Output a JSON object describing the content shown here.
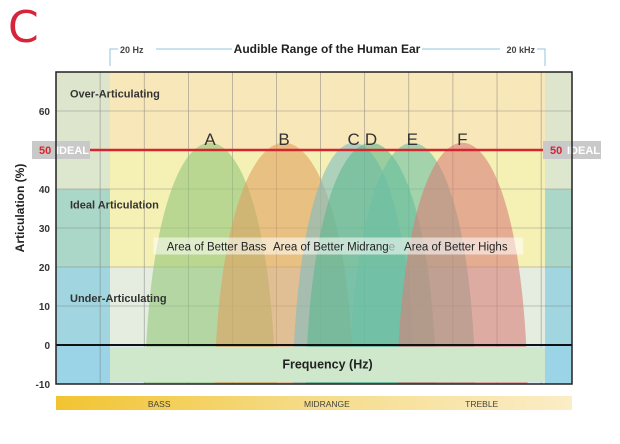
{
  "panel_label": "C",
  "colors": {
    "ideal_line": "#d3272f",
    "ideal_badge": "#c9c9c9",
    "zone_over": "#f8e7b9",
    "zone_ideal": "#f5f0b4",
    "zone_under": "#e4ede0",
    "ear_range": "#d9e9ef",
    "blue_edge": "#4fb8de",
    "freq_bar": "#cfe8cc"
  },
  "chart_data": {
    "type": "area",
    "title": "Audible Range of the Human Ear",
    "range_start_label": "20 Hz",
    "range_end_label": "20 kHz",
    "xlabel": "Frequency (Hz)",
    "ylabel": "Articulation (%)",
    "ylim": [
      -10,
      70
    ],
    "yticks": [
      -10,
      0,
      10,
      20,
      30,
      40,
      50,
      60
    ],
    "grid": true,
    "ideal": {
      "value": 50,
      "label": "IDEAL"
    },
    "zones": [
      {
        "name": "Over-Articulating",
        "from": 50,
        "to": 70
      },
      {
        "name": "Ideal Articulation",
        "from": 20,
        "to": 50
      },
      {
        "name": "Under-Articulating",
        "from": 0,
        "to": 20
      }
    ],
    "curve_x_range": [
      0,
      100
    ],
    "series": [
      {
        "name": "A",
        "x_range": [
          8,
          38
        ],
        "peak": 52,
        "color": "#93c77a"
      },
      {
        "name": "B",
        "x_range": [
          24,
          56
        ],
        "peak": 52,
        "color": "#e0a060"
      },
      {
        "name": "C",
        "x_range": [
          42,
          70
        ],
        "peak": 52,
        "color": "#7fbcc2"
      },
      {
        "name": "D",
        "x_range": [
          45,
          75
        ],
        "peak": 52,
        "color": "#5eb890"
      },
      {
        "name": "E",
        "x_range": [
          55,
          84
        ],
        "peak": 52,
        "color": "#6cbfa4"
      },
      {
        "name": "F",
        "x_range": [
          66,
          96
        ],
        "peak": 52,
        "color": "#d97f78"
      }
    ],
    "areas": [
      {
        "label": "Area of Better Bass",
        "x_from": 10,
        "x_to": 39,
        "y": 25
      },
      {
        "label": "Area of Better Midrange",
        "x_from": 39,
        "x_to": 64,
        "y": 25
      },
      {
        "label": "Area of Better Highs",
        "x_from": 64,
        "x_to": 95,
        "y": 25
      }
    ],
    "bands": [
      {
        "label": "BASS",
        "x_from": 0,
        "x_to": 40
      },
      {
        "label": "MIDRANGE",
        "x_from": 40,
        "x_to": 65
      },
      {
        "label": "TREBLE",
        "x_from": 65,
        "x_to": 100
      }
    ]
  }
}
